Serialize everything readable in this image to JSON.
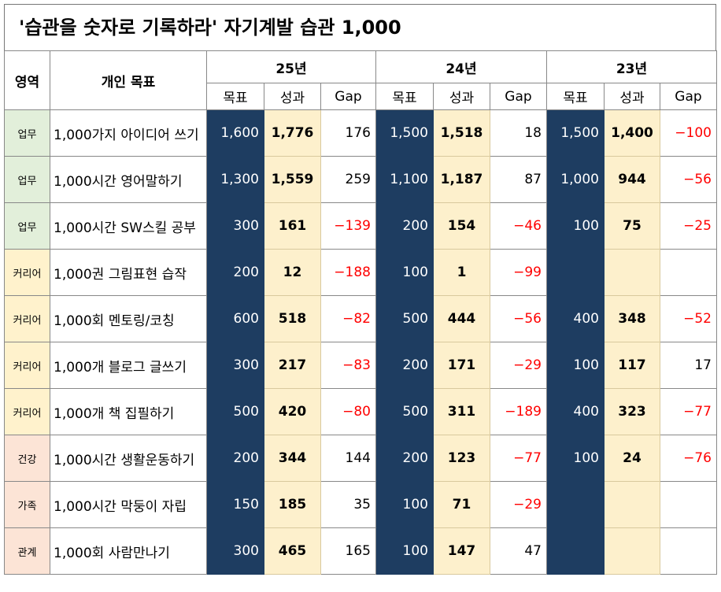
{
  "title": "'습관을 숫자로 기록하라'  자기계발 습관 1,000",
  "header": {
    "area": "영역",
    "goal": "개인 목표",
    "years": [
      "25년",
      "24년",
      "23년"
    ],
    "sub_headers": [
      [
        "목표",
        "성과",
        "Gap"
      ],
      [
        "목표",
        "성과",
        "Gap"
      ],
      [
        "목표",
        "성과",
        "Gap"
      ]
    ]
  },
  "table": {
    "rows": [
      [
        "업무",
        "1,000가지 아이디어 쓰기",
        "1,600",
        "1,776",
        "176",
        "1,500",
        "1,518",
        "18",
        "1,500",
        "1,400",
        "−100"
      ],
      [
        "업무",
        "1,000시간 영어말하기",
        "1,300",
        "1,559",
        "259",
        "1,100",
        "1,187",
        "87",
        "1,000",
        "944",
        "−56"
      ],
      [
        "업무",
        "1,000시간 SW스킬 공부",
        "300",
        "161",
        "−139",
        "200",
        "154",
        "−46",
        "100",
        "75",
        "−25"
      ],
      [
        "커리어",
        "1,000권 그림표현 습작",
        "200",
        "12",
        "−188",
        "100",
        "1",
        "−99",
        null,
        null,
        null
      ],
      [
        "커리어",
        "1,000회 멘토링/코칭",
        "600",
        "518",
        "−82",
        "500",
        "444",
        "−56",
        "400",
        "348",
        "−52"
      ],
      [
        "커리어",
        "1,000개 블로그 글쓰기",
        "300",
        "217",
        "−83",
        "200",
        "171",
        "−29",
        "100",
        "117",
        "17"
      ],
      [
        "커리어",
        "1,000개 책 집필하기",
        "500",
        "420",
        "−80",
        "500",
        "311",
        "−189",
        "400",
        "323",
        "−77"
      ],
      [
        "건강",
        "1,000시간 생활운동하기",
        "200",
        "344",
        "144",
        "200",
        "123",
        "−77",
        "100",
        "24",
        "−76"
      ],
      [
        "가족",
        "1,000시간 막둥이 자립",
        "150",
        "185",
        "35",
        "100",
        "71",
        "−29",
        null,
        null,
        null
      ],
      [
        "관계",
        "1,000회 사람만나기",
        "300",
        "465",
        "165",
        "100",
        "147",
        "47",
        null,
        null,
        null
      ]
    ]
  }
}
